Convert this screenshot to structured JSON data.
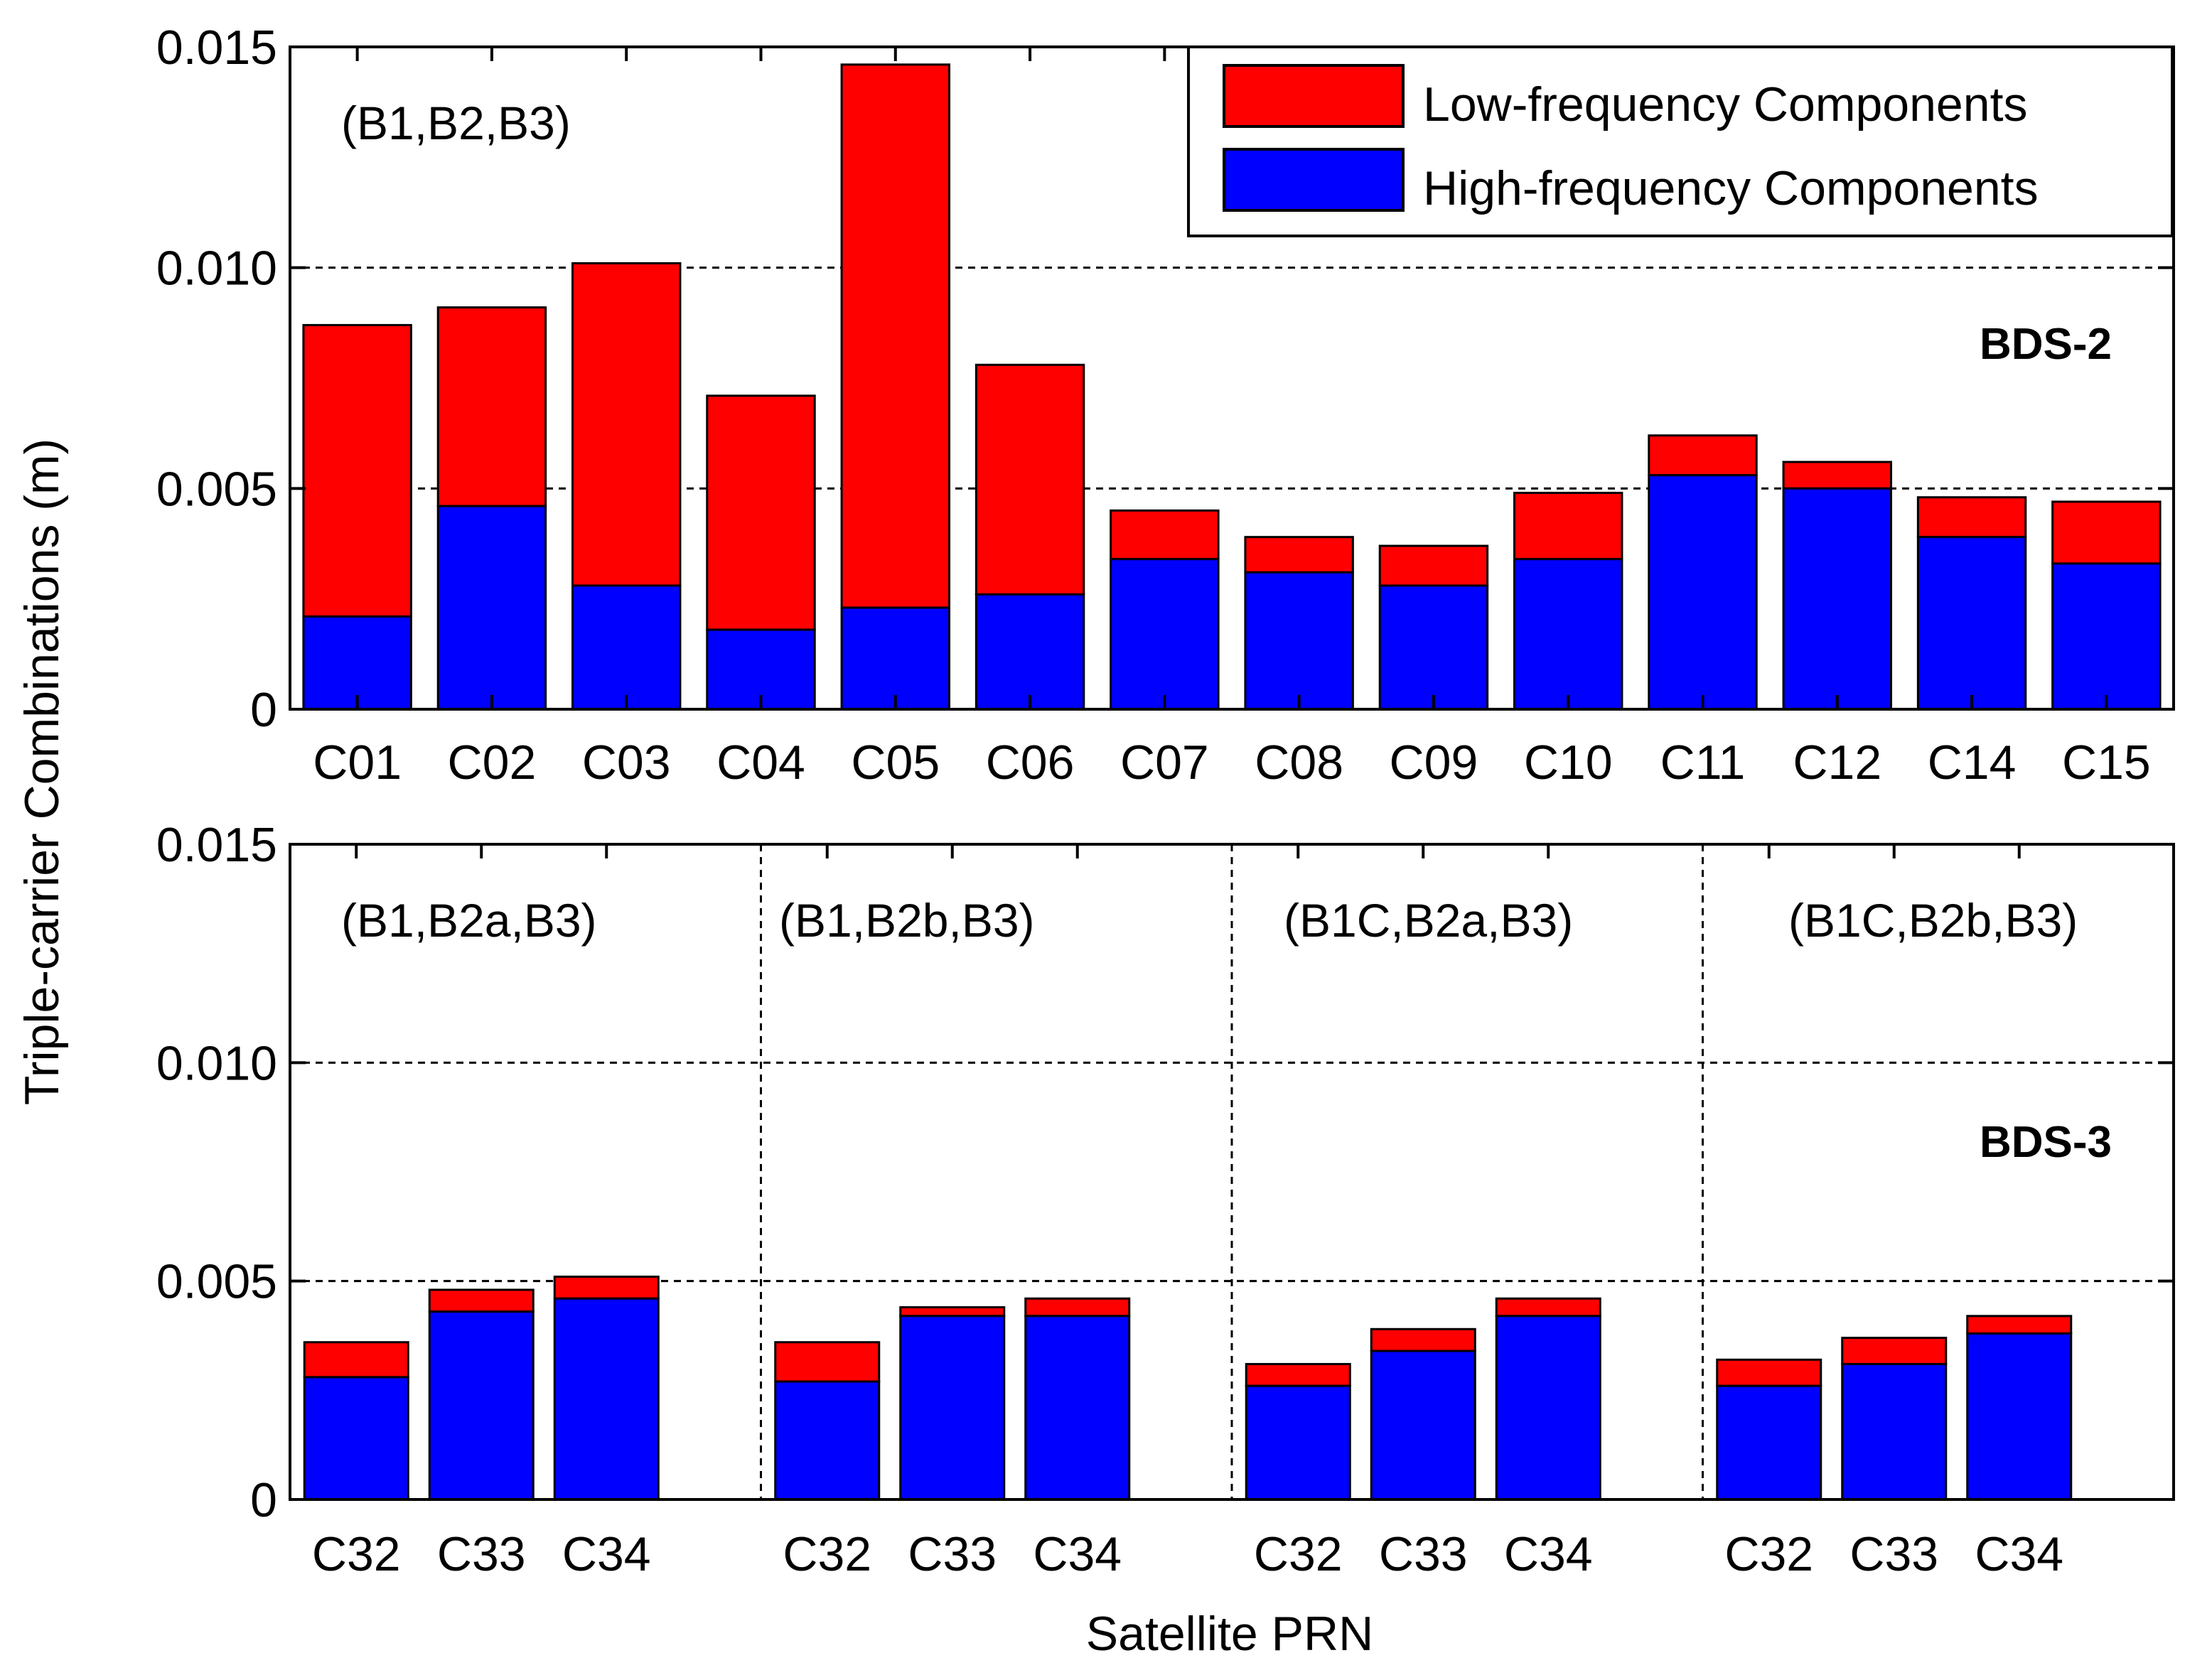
{
  "chart_data": [
    {
      "type": "bar",
      "stacked": true,
      "panel_label": "BDS-2",
      "combination_label": "(B1,B2,B3)",
      "categories": [
        "C01",
        "C02",
        "C03",
        "C04",
        "C05",
        "C06",
        "C07",
        "C08",
        "C09",
        "C10",
        "C11",
        "C12",
        "C14",
        "C15"
      ],
      "series": [
        {
          "name": "High-frequency Components",
          "color": "#0000ff",
          "values": [
            0.0021,
            0.0046,
            0.0028,
            0.0018,
            0.0023,
            0.0026,
            0.0034,
            0.0031,
            0.0028,
            0.0034,
            0.0053,
            0.005,
            0.0039,
            0.0033
          ]
        },
        {
          "name": "Low-frequency Components",
          "color": "#ff0000",
          "values": [
            0.0066,
            0.0045,
            0.0073,
            0.0053,
            0.0123,
            0.0052,
            0.0011,
            0.0008,
            0.0009,
            0.0015,
            0.0009,
            0.0006,
            0.0009,
            0.0014
          ]
        }
      ],
      "y_ticks": [
        "0",
        "0.005",
        "0.010",
        "0.015"
      ],
      "ylim": [
        0,
        0.015
      ],
      "grid": "horizontal dashed",
      "legend": "top-right"
    },
    {
      "type": "bar",
      "stacked": true,
      "panel_label": "BDS-3",
      "groups": [
        {
          "label": "(B1,B2a,B3)",
          "categories": [
            "C32",
            "C33",
            "C34"
          ],
          "high": [
            0.0028,
            0.0043,
            0.0046
          ],
          "low": [
            0.0008,
            0.0005,
            0.0005
          ]
        },
        {
          "label": "(B1,B2b,B3)",
          "categories": [
            "C32",
            "C33",
            "C34"
          ],
          "high": [
            0.0027,
            0.0042,
            0.0042
          ],
          "low": [
            0.0009,
            0.0002,
            0.0004
          ]
        },
        {
          "label": "(B1C,B2a,B3)",
          "categories": [
            "C32",
            "C33",
            "C34"
          ],
          "high": [
            0.0026,
            0.0034,
            0.0042
          ],
          "low": [
            0.0005,
            0.0005,
            0.0004
          ]
        },
        {
          "label": "(B1C,B2b,B3)",
          "categories": [
            "C32",
            "C33",
            "C34"
          ],
          "high": [
            0.0026,
            0.0031,
            0.0038
          ],
          "low": [
            0.0006,
            0.0006,
            0.0004
          ]
        }
      ],
      "y_ticks": [
        "0",
        "0.005",
        "0.010",
        "0.015"
      ],
      "ylim": [
        0,
        0.015
      ],
      "grid": "horizontal dashed"
    }
  ],
  "axes": {
    "ylabel": "Triple-carrier Combinations (m)",
    "xlabel": "Satellite PRN"
  },
  "legend": {
    "low_label": "Low-frequency Components",
    "high_label": "High-frequency Components",
    "low_color": "#ff0000",
    "high_color": "#0000ff"
  }
}
